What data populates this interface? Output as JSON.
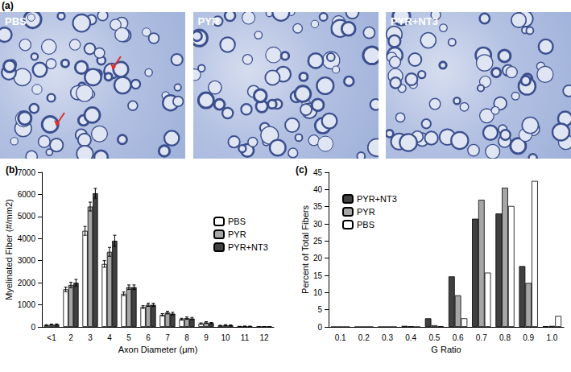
{
  "micrographs": {
    "label": "(a)",
    "panels": [
      "PBS",
      "PYR",
      "PYR+NT3"
    ]
  },
  "chart_data": [
    {
      "type": "bar",
      "title": "(b)",
      "x_label": "Axon Diameter (μm)",
      "y_label": "Myelinated Fiber (#/mm2)",
      "categories": [
        "<1",
        "2",
        "3",
        "4",
        "5",
        "6",
        "7",
        "8",
        "9",
        "10",
        "11",
        "12"
      ],
      "series": [
        {
          "name": "PBS",
          "color": "#ffffff",
          "values": [
            80,
            1700,
            4350,
            2850,
            1500,
            900,
            550,
            350,
            150,
            60,
            20,
            5
          ],
          "errors": [
            20,
            100,
            200,
            150,
            80,
            60,
            50,
            40,
            30,
            15,
            8,
            3
          ]
        },
        {
          "name": "PYR",
          "color": "#a6a6a6",
          "values": [
            100,
            1900,
            5450,
            3400,
            1800,
            1000,
            650,
            400,
            200,
            80,
            30,
            10
          ],
          "errors": [
            25,
            120,
            200,
            200,
            100,
            70,
            60,
            50,
            35,
            20,
            10,
            4
          ]
        },
        {
          "name": "PYR+NT3",
          "color": "#404040",
          "values": [
            110,
            2000,
            6050,
            3900,
            1800,
            1000,
            600,
            380,
            170,
            70,
            25,
            8
          ],
          "errors": [
            25,
            150,
            220,
            250,
            100,
            70,
            60,
            50,
            30,
            20,
            10,
            4
          ]
        }
      ],
      "ylim": [
        0,
        7000
      ],
      "yticks": [
        0,
        1000,
        2000,
        3000,
        4000,
        5000,
        6000,
        7000
      ],
      "legend": "right",
      "grid": false
    },
    {
      "type": "bar",
      "title": "(c)",
      "x_label": "G Ratio",
      "y_label": "Percent of Total Fibers",
      "categories": [
        "0.1",
        "0.2",
        "0.3",
        "0.4",
        "0.5",
        "0.6",
        "0.7",
        "0.8",
        "0.9",
        "1.0"
      ],
      "series": [
        {
          "name": "PYR+NT3",
          "color": "#404040",
          "values": [
            0,
            0,
            0,
            0.3,
            2.5,
            14.7,
            31.5,
            33,
            17.7,
            0.2
          ]
        },
        {
          "name": "PYR",
          "color": "#a6a6a6",
          "values": [
            0,
            0,
            0,
            0.2,
            0.5,
            9.2,
            37,
            40.5,
            12.8,
            0.3
          ]
        },
        {
          "name": "PBS",
          "color": "#ffffff",
          "values": [
            0,
            0,
            0,
            0,
            0.2,
            2.5,
            15.8,
            35.2,
            42.5,
            3.2
          ]
        }
      ],
      "ylim": [
        0,
        45
      ],
      "yticks": [
        0,
        5,
        10,
        15,
        20,
        25,
        30,
        35,
        40,
        45
      ],
      "legend": "upper left",
      "grid": false
    }
  ]
}
